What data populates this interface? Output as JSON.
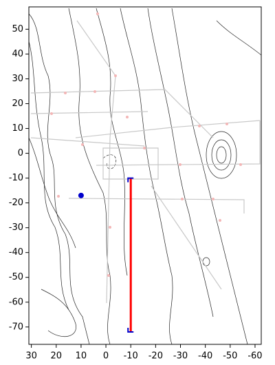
{
  "chart_data": {
    "type": "map-plot",
    "xlim": [
      31,
      -62.5
    ],
    "ylim": [
      -77,
      59
    ],
    "xticks": [
      30,
      20,
      10,
      0,
      -10,
      -20,
      -30,
      -40,
      -50,
      -60
    ],
    "yticks": [
      50,
      40,
      30,
      20,
      10,
      0,
      -10,
      -20,
      -30,
      -40,
      -50,
      -60,
      -70
    ],
    "series": [
      {
        "mode": "line",
        "color": "#ff0000",
        "x": [
          -10,
          -10
        ],
        "values": [
          -10,
          -72
        ]
      },
      {
        "mode": "point",
        "color": "#0000cc",
        "x": [
          10
        ],
        "values": [
          -17
        ]
      }
    ]
  }
}
